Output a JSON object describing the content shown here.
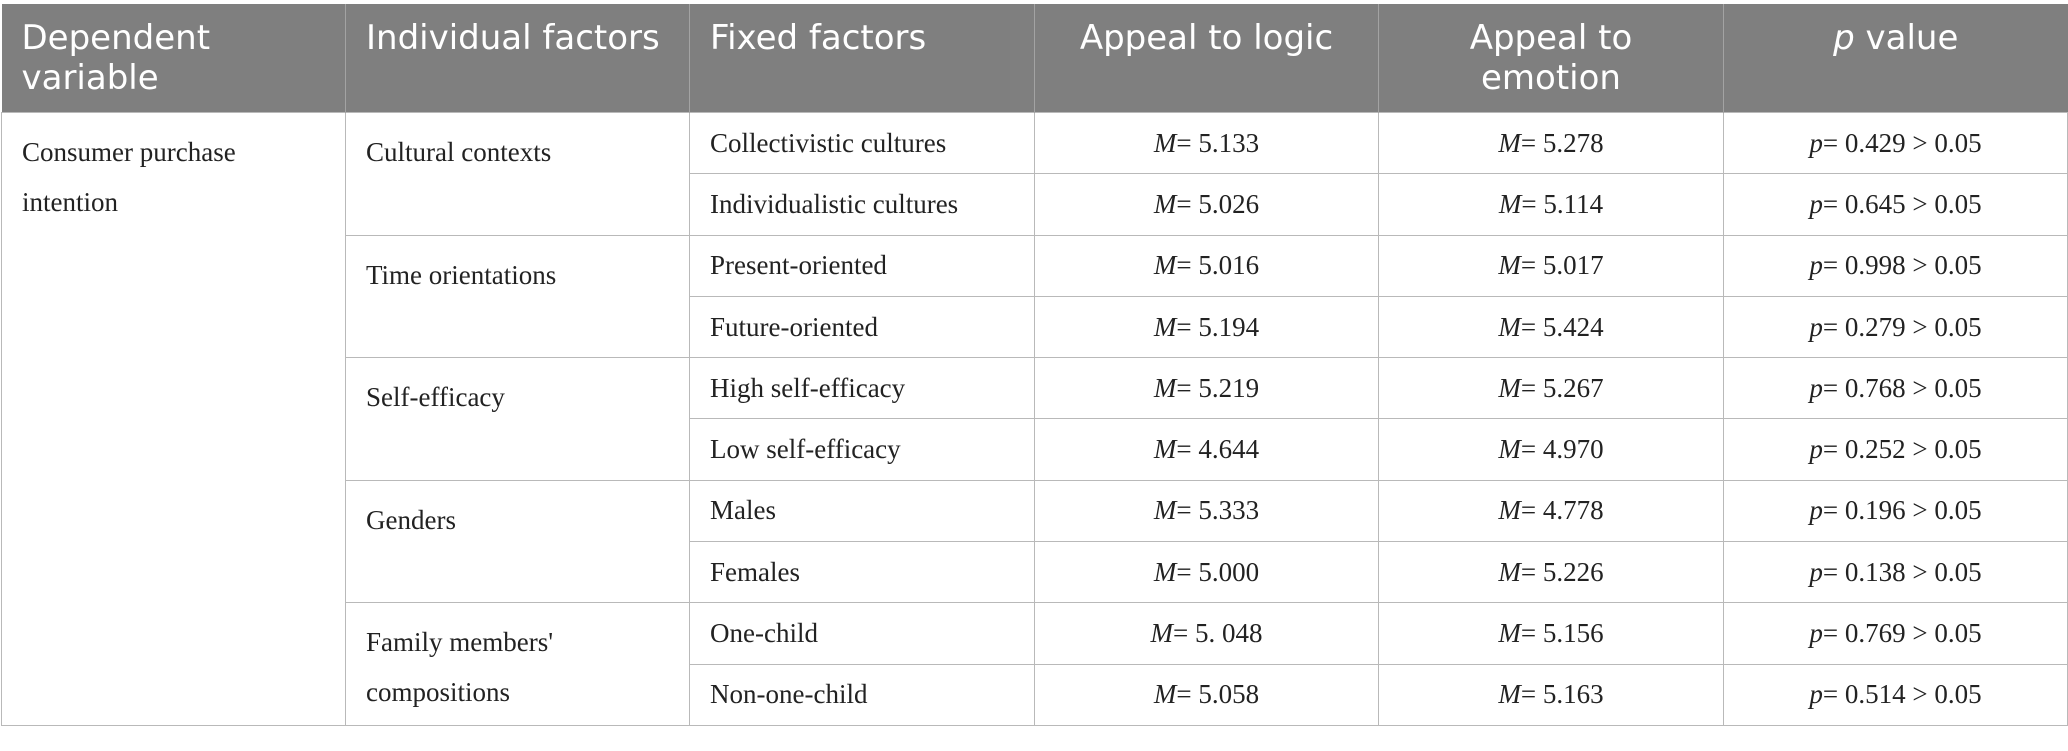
{
  "headers": {
    "dependent_variable": "Dependent variable",
    "individual_factors": "Individual factors",
    "fixed_factors": "Fixed factors",
    "appeal_logic": "Appeal to logic",
    "appeal_emotion": "Appeal to emotion",
    "p_italic": "p",
    "p_rest": " value"
  },
  "dependent_variable": "Consumer purchase intention",
  "groups": [
    {
      "factor": "Cultural contexts",
      "rows": [
        {
          "fixed": "Collectivistic cultures",
          "logic": "= 5.133",
          "emotion": "= 5.278",
          "p": "= 0.429 > 0.05"
        },
        {
          "fixed": "Individualistic cultures",
          "logic": "= 5.026",
          "emotion": "= 5.114",
          "p": "= 0.645 > 0.05"
        }
      ]
    },
    {
      "factor": "Time orientations",
      "rows": [
        {
          "fixed": "Present-oriented",
          "logic": "= 5.016",
          "emotion": "= 5.017",
          "p": "= 0.998 > 0.05"
        },
        {
          "fixed": "Future-oriented",
          "logic": "= 5.194",
          "emotion": "= 5.424",
          "p": "= 0.279 > 0.05"
        }
      ]
    },
    {
      "factor": "Self-efficacy",
      "rows": [
        {
          "fixed": "High self-efficacy",
          "logic": "= 5.219",
          "emotion": "= 5.267",
          "p": "= 0.768 > 0.05"
        },
        {
          "fixed": "Low self-efficacy",
          "logic": "= 4.644",
          "emotion": "= 4.970",
          "p": "= 0.252 > 0.05"
        }
      ]
    },
    {
      "factor": "Genders",
      "rows": [
        {
          "fixed": "Males",
          "logic": "= 5.333",
          "emotion": "= 4.778",
          "p": "= 0.196 > 0.05"
        },
        {
          "fixed": "Females",
          "logic": "= 5.000",
          "emotion": "= 5.226",
          "p": "= 0.138 > 0.05"
        }
      ]
    },
    {
      "factor": "Family members' compositions",
      "rows": [
        {
          "fixed": "One-child",
          "logic": "= 5. 048",
          "emotion": "= 5.156",
          "p": "= 0.769 > 0.05"
        },
        {
          "fixed": "Non-one-child",
          "logic": "= 5.058",
          "emotion": "= 5.163",
          "p": "= 0.514 > 0.05"
        }
      ]
    }
  ],
  "symbols": {
    "mean": "M",
    "p": "p"
  }
}
